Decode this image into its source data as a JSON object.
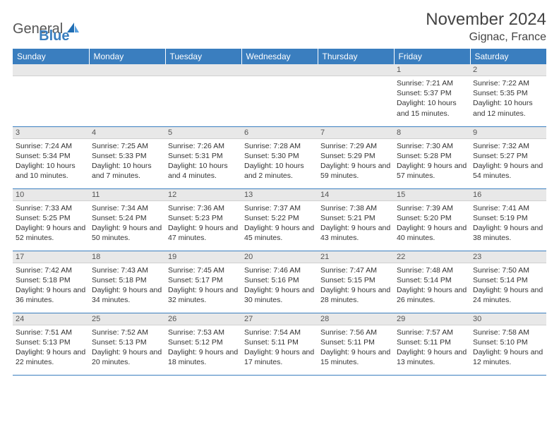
{
  "logo": {
    "text1": "General",
    "text2": "Blue",
    "icon_color": "#1f6db3"
  },
  "title": "November 2024",
  "location": "Gignac, France",
  "colors": {
    "header_bg": "#3a7ebf",
    "header_fg": "#ffffff",
    "daynum_bg": "#e8e8e8",
    "rule": "#3a7ebf",
    "text": "#333333"
  },
  "columns": [
    "Sunday",
    "Monday",
    "Tuesday",
    "Wednesday",
    "Thursday",
    "Friday",
    "Saturday"
  ],
  "weeks": [
    [
      null,
      null,
      null,
      null,
      null,
      {
        "n": "1",
        "sr": "Sunrise: 7:21 AM",
        "ss": "Sunset: 5:37 PM",
        "dl": "Daylight: 10 hours and 15 minutes."
      },
      {
        "n": "2",
        "sr": "Sunrise: 7:22 AM",
        "ss": "Sunset: 5:35 PM",
        "dl": "Daylight: 10 hours and 12 minutes."
      }
    ],
    [
      {
        "n": "3",
        "sr": "Sunrise: 7:24 AM",
        "ss": "Sunset: 5:34 PM",
        "dl": "Daylight: 10 hours and 10 minutes."
      },
      {
        "n": "4",
        "sr": "Sunrise: 7:25 AM",
        "ss": "Sunset: 5:33 PM",
        "dl": "Daylight: 10 hours and 7 minutes."
      },
      {
        "n": "5",
        "sr": "Sunrise: 7:26 AM",
        "ss": "Sunset: 5:31 PM",
        "dl": "Daylight: 10 hours and 4 minutes."
      },
      {
        "n": "6",
        "sr": "Sunrise: 7:28 AM",
        "ss": "Sunset: 5:30 PM",
        "dl": "Daylight: 10 hours and 2 minutes."
      },
      {
        "n": "7",
        "sr": "Sunrise: 7:29 AM",
        "ss": "Sunset: 5:29 PM",
        "dl": "Daylight: 9 hours and 59 minutes."
      },
      {
        "n": "8",
        "sr": "Sunrise: 7:30 AM",
        "ss": "Sunset: 5:28 PM",
        "dl": "Daylight: 9 hours and 57 minutes."
      },
      {
        "n": "9",
        "sr": "Sunrise: 7:32 AM",
        "ss": "Sunset: 5:27 PM",
        "dl": "Daylight: 9 hours and 54 minutes."
      }
    ],
    [
      {
        "n": "10",
        "sr": "Sunrise: 7:33 AM",
        "ss": "Sunset: 5:25 PM",
        "dl": "Daylight: 9 hours and 52 minutes."
      },
      {
        "n": "11",
        "sr": "Sunrise: 7:34 AM",
        "ss": "Sunset: 5:24 PM",
        "dl": "Daylight: 9 hours and 50 minutes."
      },
      {
        "n": "12",
        "sr": "Sunrise: 7:36 AM",
        "ss": "Sunset: 5:23 PM",
        "dl": "Daylight: 9 hours and 47 minutes."
      },
      {
        "n": "13",
        "sr": "Sunrise: 7:37 AM",
        "ss": "Sunset: 5:22 PM",
        "dl": "Daylight: 9 hours and 45 minutes."
      },
      {
        "n": "14",
        "sr": "Sunrise: 7:38 AM",
        "ss": "Sunset: 5:21 PM",
        "dl": "Daylight: 9 hours and 43 minutes."
      },
      {
        "n": "15",
        "sr": "Sunrise: 7:39 AM",
        "ss": "Sunset: 5:20 PM",
        "dl": "Daylight: 9 hours and 40 minutes."
      },
      {
        "n": "16",
        "sr": "Sunrise: 7:41 AM",
        "ss": "Sunset: 5:19 PM",
        "dl": "Daylight: 9 hours and 38 minutes."
      }
    ],
    [
      {
        "n": "17",
        "sr": "Sunrise: 7:42 AM",
        "ss": "Sunset: 5:18 PM",
        "dl": "Daylight: 9 hours and 36 minutes."
      },
      {
        "n": "18",
        "sr": "Sunrise: 7:43 AM",
        "ss": "Sunset: 5:18 PM",
        "dl": "Daylight: 9 hours and 34 minutes."
      },
      {
        "n": "19",
        "sr": "Sunrise: 7:45 AM",
        "ss": "Sunset: 5:17 PM",
        "dl": "Daylight: 9 hours and 32 minutes."
      },
      {
        "n": "20",
        "sr": "Sunrise: 7:46 AM",
        "ss": "Sunset: 5:16 PM",
        "dl": "Daylight: 9 hours and 30 minutes."
      },
      {
        "n": "21",
        "sr": "Sunrise: 7:47 AM",
        "ss": "Sunset: 5:15 PM",
        "dl": "Daylight: 9 hours and 28 minutes."
      },
      {
        "n": "22",
        "sr": "Sunrise: 7:48 AM",
        "ss": "Sunset: 5:14 PM",
        "dl": "Daylight: 9 hours and 26 minutes."
      },
      {
        "n": "23",
        "sr": "Sunrise: 7:50 AM",
        "ss": "Sunset: 5:14 PM",
        "dl": "Daylight: 9 hours and 24 minutes."
      }
    ],
    [
      {
        "n": "24",
        "sr": "Sunrise: 7:51 AM",
        "ss": "Sunset: 5:13 PM",
        "dl": "Daylight: 9 hours and 22 minutes."
      },
      {
        "n": "25",
        "sr": "Sunrise: 7:52 AM",
        "ss": "Sunset: 5:13 PM",
        "dl": "Daylight: 9 hours and 20 minutes."
      },
      {
        "n": "26",
        "sr": "Sunrise: 7:53 AM",
        "ss": "Sunset: 5:12 PM",
        "dl": "Daylight: 9 hours and 18 minutes."
      },
      {
        "n": "27",
        "sr": "Sunrise: 7:54 AM",
        "ss": "Sunset: 5:11 PM",
        "dl": "Daylight: 9 hours and 17 minutes."
      },
      {
        "n": "28",
        "sr": "Sunrise: 7:56 AM",
        "ss": "Sunset: 5:11 PM",
        "dl": "Daylight: 9 hours and 15 minutes."
      },
      {
        "n": "29",
        "sr": "Sunrise: 7:57 AM",
        "ss": "Sunset: 5:11 PM",
        "dl": "Daylight: 9 hours and 13 minutes."
      },
      {
        "n": "30",
        "sr": "Sunrise: 7:58 AM",
        "ss": "Sunset: 5:10 PM",
        "dl": "Daylight: 9 hours and 12 minutes."
      }
    ]
  ]
}
